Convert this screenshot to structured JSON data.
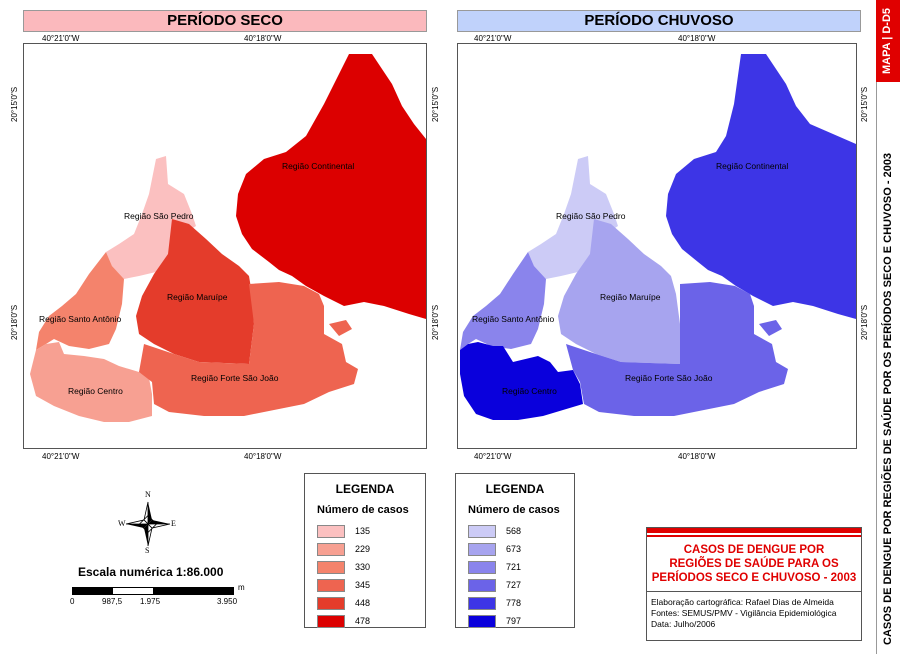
{
  "left_panel": {
    "title": "PERÍODO SECO",
    "title_bg": "#fbb9bd"
  },
  "right_panel": {
    "title": "PERÍODO CHUVOSO",
    "title_bg": "#c0d2fb"
  },
  "coords": {
    "top_a": "40°21'0\"W",
    "top_b": "40°18'0\"W",
    "bottom_a": "40°21'0\"W",
    "bottom_b": "40°18'0\"W",
    "lat_a": "20°15'0\"S",
    "lat_b": "20°18'0\"S"
  },
  "regions": {
    "continental": "Região Continental",
    "sao_pedro": "Região São Pedro",
    "maruipe": "Região Maruípe",
    "santo_antonio": "Região Santo Antônio",
    "centro": "Região Centro",
    "forte_sao_joao": "Região Forte São João"
  },
  "legend_seco": {
    "title": "LEGENDA",
    "subtitle": "Número de casos",
    "items": [
      {
        "label": "135",
        "color": "#fbc0c0"
      },
      {
        "label": "229",
        "color": "#f7a092"
      },
      {
        "label": "330",
        "color": "#f4836c"
      },
      {
        "label": "345",
        "color": "#ee6450"
      },
      {
        "label": "448",
        "color": "#e43c2b"
      },
      {
        "label": "478",
        "color": "#dc0000"
      }
    ]
  },
  "legend_chuvoso": {
    "title": "LEGENDA",
    "subtitle": "Número de casos",
    "items": [
      {
        "label": "568",
        "color": "#cccbf6"
      },
      {
        "label": "673",
        "color": "#a7a4ef"
      },
      {
        "label": "721",
        "color": "#8a84ec"
      },
      {
        "label": "727",
        "color": "#6b63e8"
      },
      {
        "label": "778",
        "color": "#3d35e6"
      },
      {
        "label": "797",
        "color": "#0a00dc"
      }
    ]
  },
  "compass": {
    "n": "N",
    "s": "S",
    "e": "E",
    "w": "W"
  },
  "scale": {
    "label": "Escala numérica",
    "value": "1:86.000",
    "unit": "m",
    "ticks": [
      "0",
      "987,5",
      "1.975",
      "3.950"
    ]
  },
  "title_block": {
    "line1": "CASOS DE DENGUE POR",
    "line2": "REGIÕES DE SAÚDE PARA OS",
    "line3": "PERÍODOS SECO E CHUVOSO - 2003",
    "credit1": "Elaboração cartográfica: Rafael Dias de Almeida",
    "credit2": "Fontes: SEMUS/PMV - Vigilância Epidemiológica",
    "credit3": "Data: Julho/2006"
  },
  "sidebar": {
    "map_code": "MAPA | D-D5",
    "vertical_title": "CASOS DE DENGUE POR REGIÕES DE SAÚDE POR OS PERÍODOS SECO E CHUVOSO - 2003",
    "accent": "#e00000"
  }
}
